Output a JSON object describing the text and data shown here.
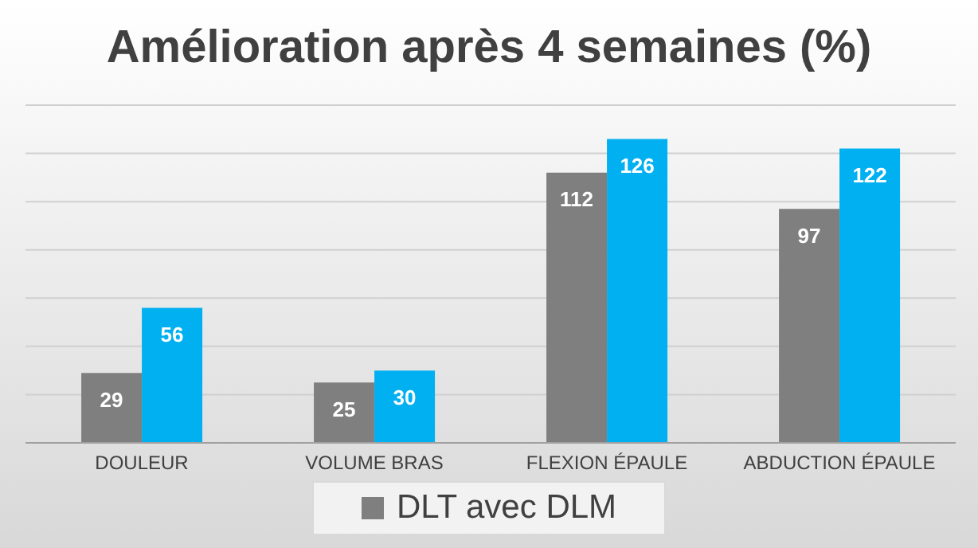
{
  "chart_data": {
    "type": "bar",
    "title": "Amélioration après 4 semaines (%)",
    "categories": [
      "DOULEUR",
      "VOLUME BRAS",
      "FLEXION ÉPAULE",
      "ABDUCTION ÉPAULE"
    ],
    "series": [
      {
        "name": "DLT avec DLM",
        "color": "#7f7f7f",
        "values": [
          29,
          25,
          112,
          97
        ]
      },
      {
        "color": "#00b0f0",
        "values": [
          56,
          30,
          126,
          122
        ]
      }
    ],
    "ylim": [
      0,
      140
    ],
    "tick_labels": "x",
    "grid": "y",
    "data_labels": true,
    "legend": "bottom"
  }
}
